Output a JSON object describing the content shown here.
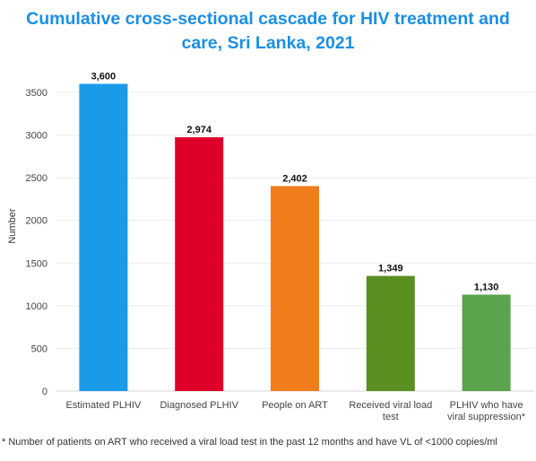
{
  "title_lines": [
    "Cumulative cross-sectional cascade for HIV treatment and",
    "care, Sri Lanka, 2021"
  ],
  "footnote": "* Number of patients on ART who received a viral load test in the past 12 months and have VL of <1000 copies/ml",
  "colors": {
    "title": "#1a8fe3",
    "bars": [
      "#1a9be8",
      "#df0029",
      "#f07c1a",
      "#5a8f22",
      "#5ba34c"
    ],
    "grid": "#ececec",
    "axis_text": "#444444"
  },
  "chart_data": {
    "type": "bar",
    "title": "Cumulative cross-sectional cascade for HIV treatment and care, Sri Lanka, 2021",
    "ylabel": "Number",
    "xlabel": "",
    "ylim": [
      0,
      3800
    ],
    "yticks": [
      0,
      500,
      1000,
      1500,
      2000,
      2500,
      3000,
      3500
    ],
    "grid": true,
    "categories": [
      [
        "Estimated PLHIV"
      ],
      [
        "Diagnosed PLHIV"
      ],
      [
        "People on ART"
      ],
      [
        "Received viral load",
        "test"
      ],
      [
        "PLHIV who have",
        "viral suppression*"
      ]
    ],
    "values": [
      3600,
      2974,
      2402,
      1349,
      1130
    ],
    "data_labels": [
      "3,600",
      "2,974",
      "2,402",
      "1,349",
      "1,130"
    ]
  }
}
